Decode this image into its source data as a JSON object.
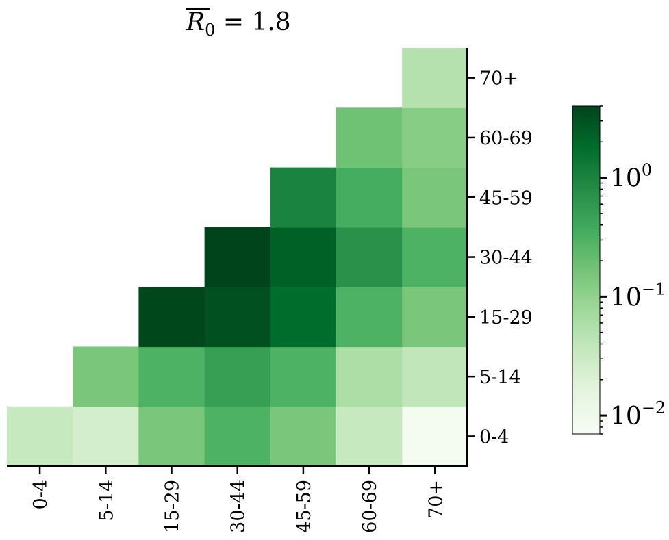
{
  "chart_data": {
    "type": "heatmap",
    "title": {
      "symbol": "R",
      "subscript": "0",
      "rest": " = 1.8"
    },
    "x_categories": [
      "0-4",
      "5-14",
      "15-29",
      "30-44",
      "45-59",
      "60-69",
      "70+"
    ],
    "y_categories": [
      "0-4",
      "5-14",
      "15-29",
      "30-44",
      "45-59",
      "60-69",
      "70+"
    ],
    "y_axis_position": "right",
    "grid": false,
    "color_scale": "log",
    "colormap": "Greens",
    "color_range": [
      0.007,
      4.0
    ],
    "colorbar": {
      "position": "right",
      "ticks": [
        {
          "base": "10",
          "exp": "0",
          "value": 1
        },
        {
          "base": "10",
          "exp": "−1",
          "value": 0.1
        },
        {
          "base": "10",
          "exp": "−2",
          "value": 0.01
        }
      ]
    },
    "rows": [
      {
        "y": "0-4",
        "values": [
          0.035,
          0.025,
          0.15,
          0.3,
          0.15,
          0.035,
          0.008
        ]
      },
      {
        "y": "5-14",
        "values": [
          null,
          0.15,
          0.3,
          0.5,
          0.3,
          0.06,
          0.04
        ]
      },
      {
        "y": "15-29",
        "values": [
          null,
          null,
          3.8,
          3.2,
          1.8,
          0.3,
          0.15
        ]
      },
      {
        "y": "30-44",
        "values": [
          null,
          null,
          null,
          4.0,
          2.3,
          0.7,
          0.3
        ]
      },
      {
        "y": "45-59",
        "values": [
          null,
          null,
          null,
          null,
          1.0,
          0.35,
          0.15
        ]
      },
      {
        "y": "60-69",
        "values": [
          null,
          null,
          null,
          null,
          null,
          0.18,
          0.12
        ]
      },
      {
        "y": "70+",
        "values": [
          null,
          null,
          null,
          null,
          null,
          null,
          0.05
        ]
      }
    ]
  }
}
